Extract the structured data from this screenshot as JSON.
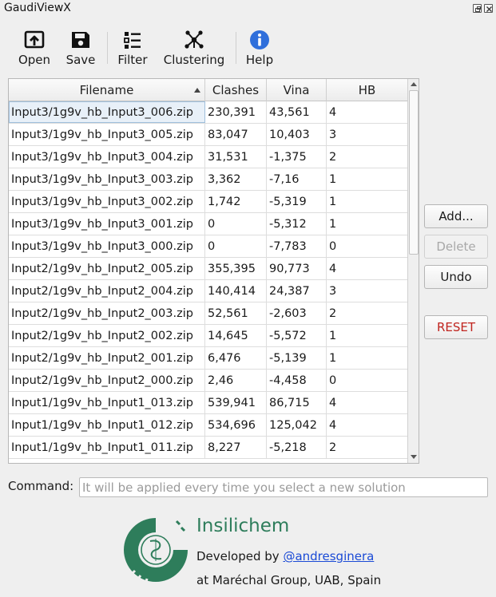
{
  "window": {
    "title": "GaudiViewX"
  },
  "toolbar": {
    "items": [
      {
        "label": "Open",
        "icon": "open-icon"
      },
      {
        "label": "Save",
        "icon": "save-icon"
      },
      {
        "label": "Filter",
        "icon": "filter-icon"
      },
      {
        "label": "Clustering",
        "icon": "clustering-icon"
      },
      {
        "label": "Help",
        "icon": "help-icon"
      }
    ]
  },
  "table": {
    "columns": [
      "Filename",
      "Clashes",
      "Vina",
      "HB"
    ],
    "sort_column": "Filename",
    "rows": [
      [
        "Input3/1g9v_hb_Input3_006.zip",
        "230,391",
        "43,561",
        "4"
      ],
      [
        "Input3/1g9v_hb_Input3_005.zip",
        "83,047",
        "10,403",
        "3"
      ],
      [
        "Input3/1g9v_hb_Input3_004.zip",
        "31,531",
        "-1,375",
        "2"
      ],
      [
        "Input3/1g9v_hb_Input3_003.zip",
        "3,362",
        "-7,16",
        "1"
      ],
      [
        "Input3/1g9v_hb_Input3_002.zip",
        "1,742",
        "-5,319",
        "1"
      ],
      [
        "Input3/1g9v_hb_Input3_001.zip",
        "0",
        "-5,312",
        "1"
      ],
      [
        "Input3/1g9v_hb_Input3_000.zip",
        "0",
        "-7,783",
        "0"
      ],
      [
        "Input2/1g9v_hb_Input2_005.zip",
        "355,395",
        "90,773",
        "4"
      ],
      [
        "Input2/1g9v_hb_Input2_004.zip",
        "140,414",
        "24,387",
        "3"
      ],
      [
        "Input2/1g9v_hb_Input2_003.zip",
        "52,561",
        "-2,603",
        "2"
      ],
      [
        "Input2/1g9v_hb_Input2_002.zip",
        "14,645",
        "-5,572",
        "1"
      ],
      [
        "Input2/1g9v_hb_Input2_001.zip",
        "6,476",
        "-5,139",
        "1"
      ],
      [
        "Input2/1g9v_hb_Input2_000.zip",
        "2,46",
        "-4,458",
        "0"
      ],
      [
        "Input1/1g9v_hb_Input1_013.zip",
        "539,941",
        "86,715",
        "4"
      ],
      [
        "Input1/1g9v_hb_Input1_012.zip",
        "534,696",
        "125,042",
        "4"
      ],
      [
        "Input1/1g9v_hb_Input1_011.zip",
        "8,227",
        "-5,218",
        "2"
      ]
    ],
    "selected_row": 0
  },
  "buttons": {
    "add": "Add...",
    "delete": "Delete",
    "undo": "Undo",
    "reset": "RESET"
  },
  "command": {
    "label": "Command:",
    "value": "",
    "placeholder": "It will be applied every time you select a new solution"
  },
  "footer": {
    "brand": "Insilichem",
    "developed_by": "Developed by",
    "author_link": "@andresginera",
    "affiliation": "at Maréchal Group, UAB, Spain"
  },
  "colors": {
    "brand": "#2e7d5b",
    "link": "#1a4ad6",
    "reset": "#c0251f",
    "help": "#2f6fdb"
  }
}
